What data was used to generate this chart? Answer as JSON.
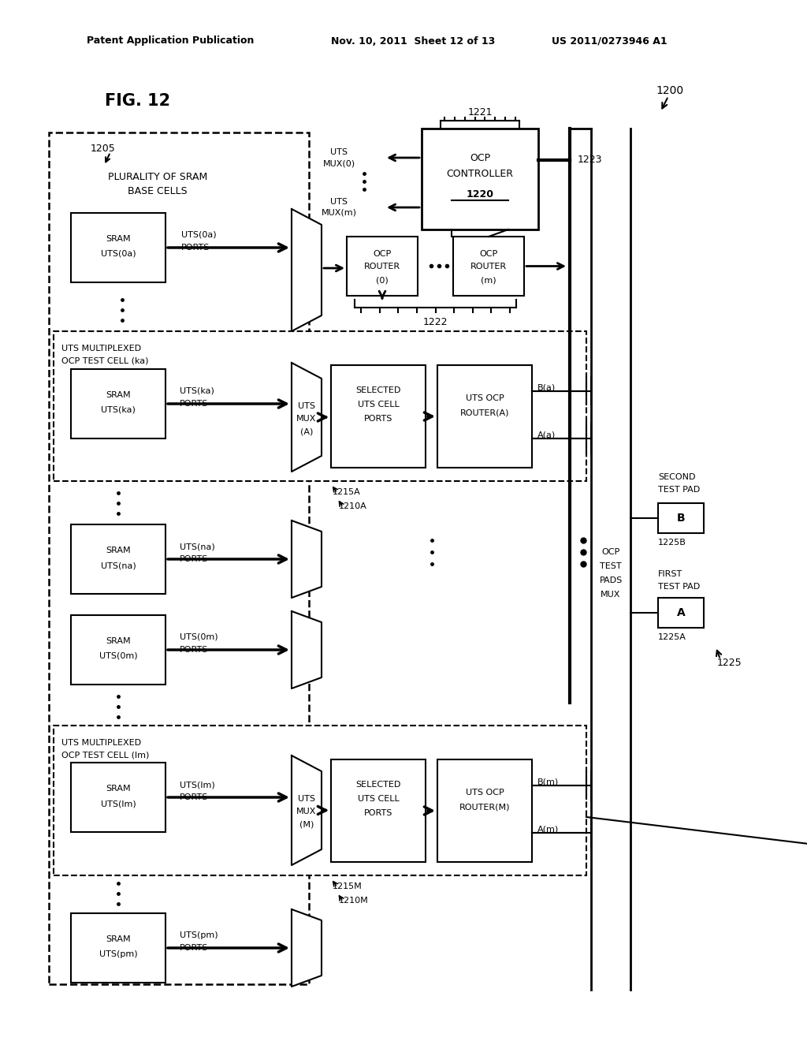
{
  "patent_header_left": "Patent Application Publication",
  "patent_header_mid": "Nov. 10, 2011  Sheet 12 of 13",
  "patent_header_right": "US 2011/0273946 A1",
  "fig_label": "FIG. 12",
  "ref_1200": "1200",
  "ref_1205": "1205",
  "ref_1220": "1220",
  "ref_1221": "1221",
  "ref_1222": "1222",
  "ref_1223": "1223",
  "ref_1210A": "1210A",
  "ref_1210M": "1210M",
  "ref_1215A": "1215A",
  "ref_1215M": "1215M",
  "ref_1225": "1225",
  "ref_1225A": "1225A",
  "ref_1225B": "1225B",
  "bg_color": "#ffffff",
  "lc": "#000000"
}
